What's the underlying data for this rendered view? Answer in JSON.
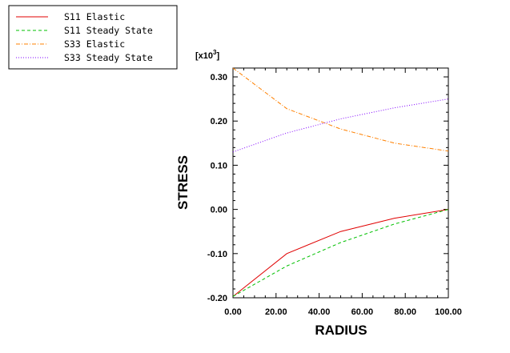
{
  "chart_data": {
    "type": "line",
    "xlabel": "RADIUS",
    "ylabel": "STRESS",
    "y_multiplier_prefix": "[x10",
    "y_multiplier_exponent": "3",
    "y_multiplier_suffix": "]",
    "xlim": [
      0,
      100
    ],
    "ylim": [
      -0.2,
      0.32
    ],
    "x_ticks": [
      0,
      20,
      40,
      60,
      80,
      100
    ],
    "x_tick_labels": [
      "0.00",
      "20.00",
      "40.00",
      "60.00",
      "80.00",
      "100.00"
    ],
    "y_ticks": [
      -0.2,
      -0.1,
      0.0,
      0.1,
      0.2,
      0.3
    ],
    "y_tick_labels": [
      "-0.20",
      "-0.10",
      "0.00",
      "0.10",
      "0.20",
      "0.30"
    ],
    "grid": false,
    "legend_position": "top-left, outside plot",
    "series": [
      {
        "name": "S11 Elastic",
        "color": "#e00000",
        "dash": "solid",
        "x": [
          0,
          25,
          50,
          75,
          100
        ],
        "y": [
          -0.197,
          -0.1,
          -0.05,
          -0.02,
          0.0
        ]
      },
      {
        "name": "S11 Steady State",
        "color": "#00c000",
        "dash": "dashed",
        "x": [
          0,
          25,
          50,
          75,
          100
        ],
        "y": [
          -0.197,
          -0.128,
          -0.075,
          -0.033,
          0.0
        ]
      },
      {
        "name": "S33 Elastic",
        "color": "#ff8000",
        "dash": "dashdot",
        "x": [
          0,
          25,
          50,
          75,
          100
        ],
        "y": [
          0.32,
          0.228,
          0.182,
          0.15,
          0.132
        ]
      },
      {
        "name": "S33 Steady State",
        "color": "#8000ff",
        "dash": "dotted",
        "x": [
          0,
          25,
          50,
          75,
          100
        ],
        "y": [
          0.13,
          0.173,
          0.205,
          0.23,
          0.25
        ]
      }
    ]
  }
}
